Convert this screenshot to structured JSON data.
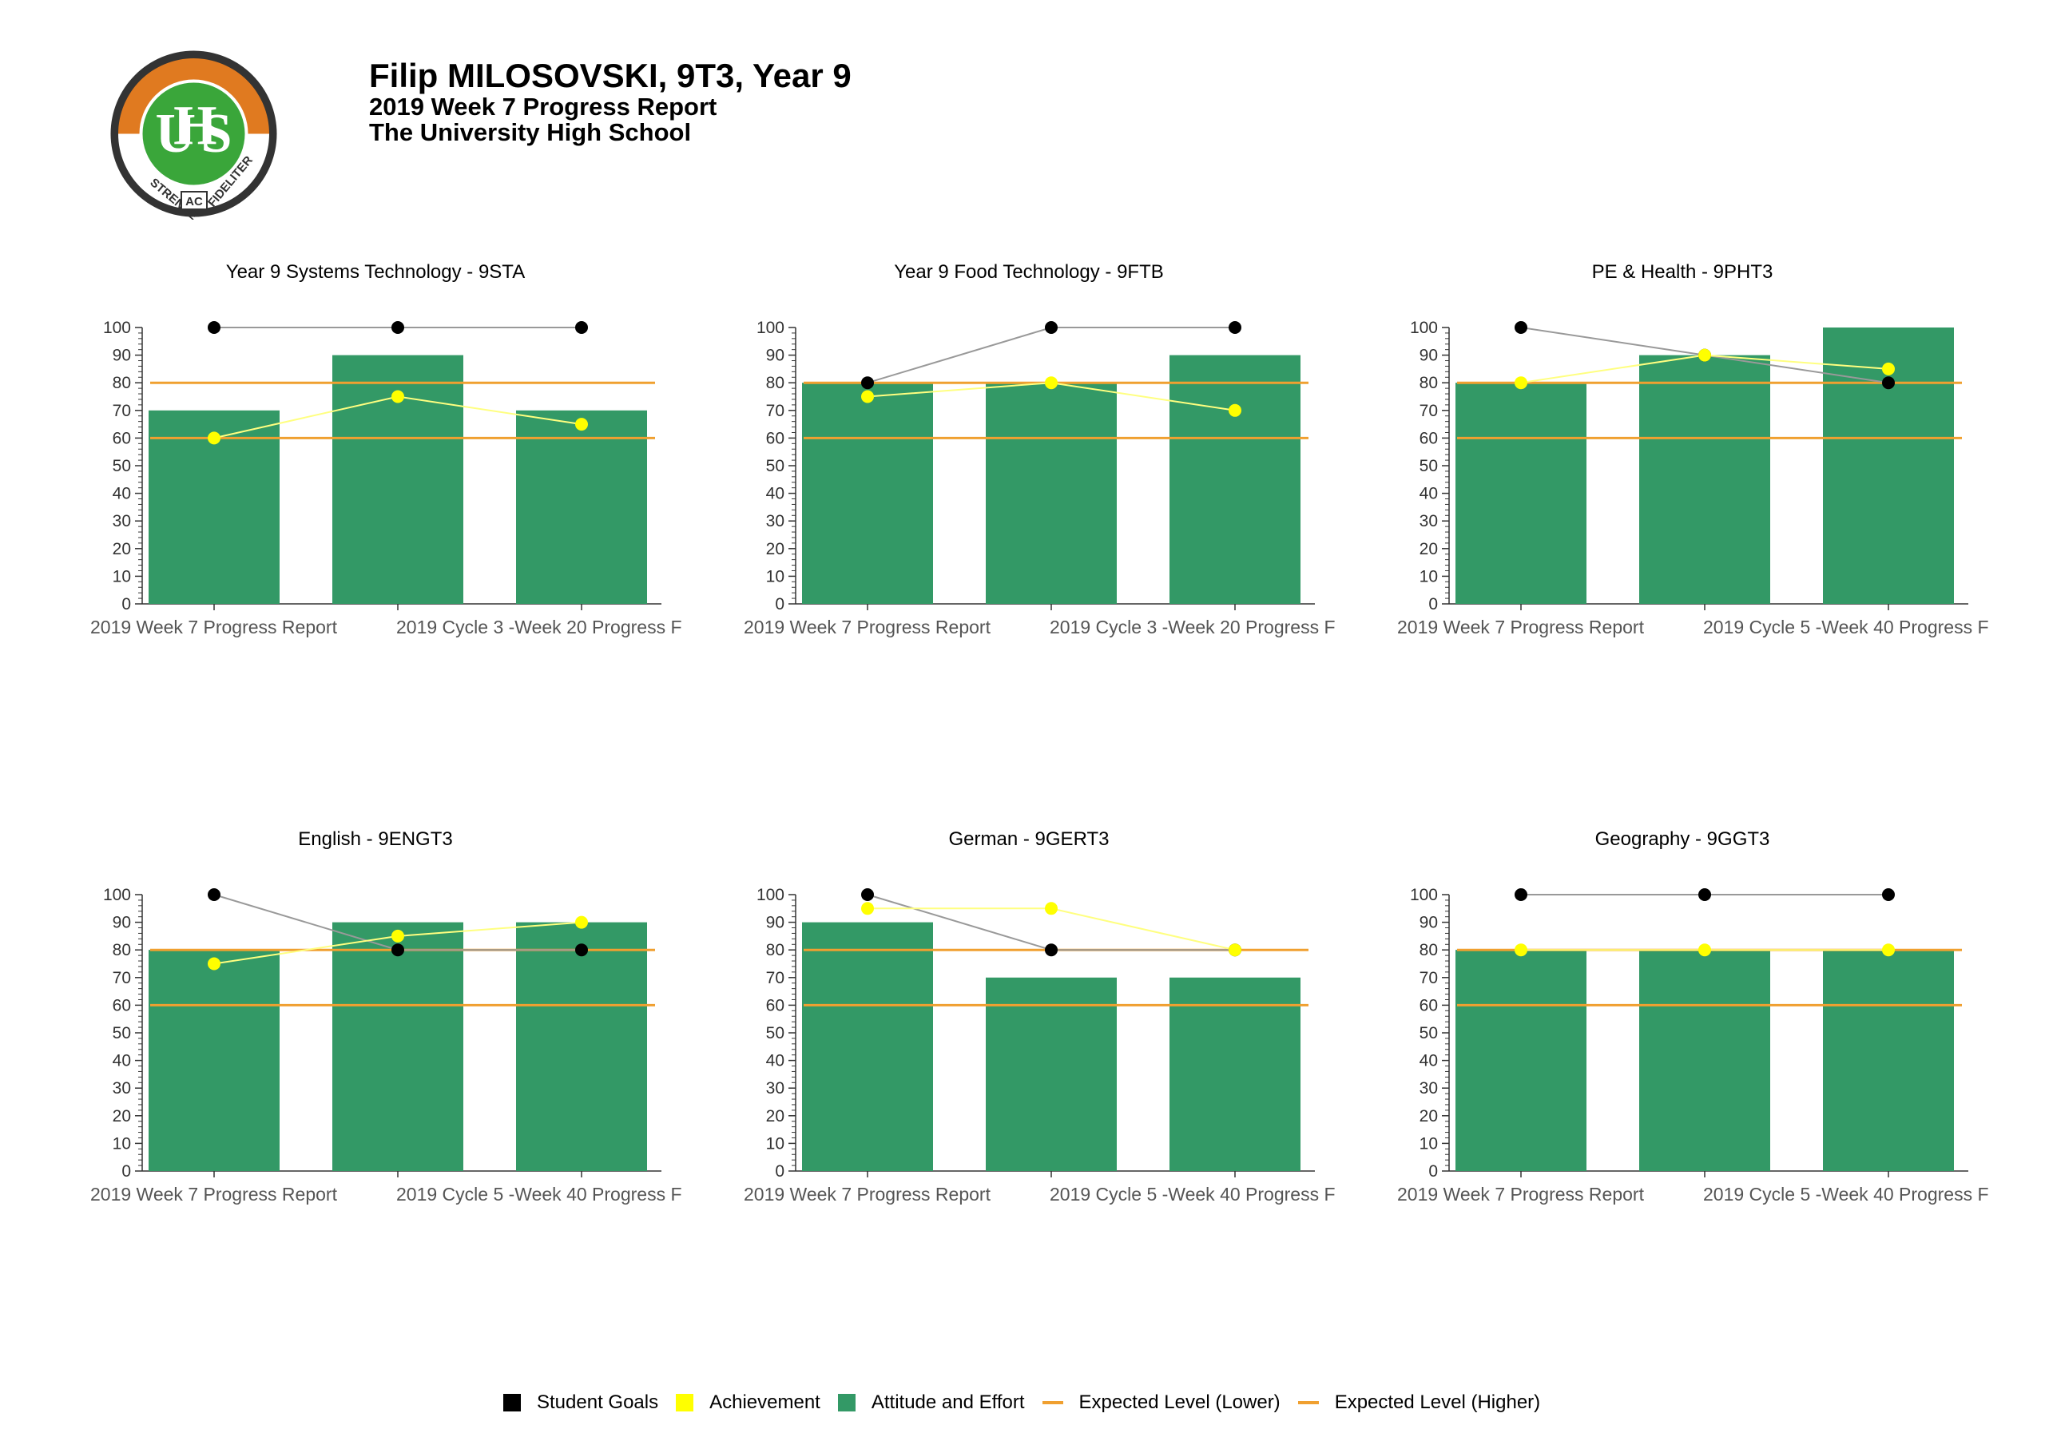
{
  "header": {
    "student": "Filip MILOSOVSKI, 9T3, Year 9",
    "report": "2019 Week 7 Progress Report",
    "school": "The University High School"
  },
  "logo": {
    "letters": "UHS",
    "motto_left": "STRENUE",
    "motto_mid": "AC",
    "motto_right": "FIDELITER"
  },
  "colors": {
    "bar": "#339966",
    "goal": "#000000",
    "achievement": "#ffff00",
    "expected_lower": "#f0a030",
    "expected_higher": "#f0a030"
  },
  "legend": [
    {
      "label": "Student Goals",
      "kind": "square",
      "color": "#000000"
    },
    {
      "label": "Achievement",
      "kind": "square",
      "color": "#ffff00"
    },
    {
      "label": "Attitude and Effort",
      "kind": "square",
      "color": "#339966"
    },
    {
      "label": "Expected Level (Lower)",
      "kind": "line",
      "color": "#f0a030"
    },
    {
      "label": "Expected Level (Higher)",
      "kind": "line",
      "color": "#f0a030"
    }
  ],
  "chart_data": [
    {
      "type": "bar",
      "title": "Year 9 Systems Technology - 9STA",
      "categories": [
        "2019 Week 7 Progress Report",
        "",
        "2019 Cycle 3 -Week 20 Progress F"
      ],
      "ylim": [
        0,
        100
      ],
      "yticks": [
        0,
        10,
        20,
        30,
        40,
        50,
        60,
        70,
        80,
        90,
        100
      ],
      "series": [
        {
          "name": "Attitude and Effort",
          "values": [
            70,
            90,
            70
          ]
        },
        {
          "name": "Student Goals",
          "values": [
            100,
            100,
            100
          ]
        },
        {
          "name": "Achievement",
          "values": [
            60,
            75,
            65
          ]
        }
      ],
      "expected_lower": 60,
      "expected_higher": 80
    },
    {
      "type": "bar",
      "title": "Year 9 Food Technology - 9FTB",
      "categories": [
        "2019 Week 7 Progress Report",
        "",
        "2019 Cycle 3 -Week 20 Progress F"
      ],
      "ylim": [
        0,
        100
      ],
      "yticks": [
        0,
        10,
        20,
        30,
        40,
        50,
        60,
        70,
        80,
        90,
        100
      ],
      "series": [
        {
          "name": "Attitude and Effort",
          "values": [
            80,
            80,
            90
          ]
        },
        {
          "name": "Student Goals",
          "values": [
            80,
            100,
            100
          ]
        },
        {
          "name": "Achievement",
          "values": [
            75,
            80,
            70
          ]
        }
      ],
      "expected_lower": 60,
      "expected_higher": 80
    },
    {
      "type": "bar",
      "title": "PE & Health - 9PHT3",
      "categories": [
        "2019 Week 7 Progress Report",
        "",
        "2019 Cycle 5 -Week 40 Progress F"
      ],
      "ylim": [
        0,
        100
      ],
      "yticks": [
        0,
        10,
        20,
        30,
        40,
        50,
        60,
        70,
        80,
        90,
        100
      ],
      "series": [
        {
          "name": "Attitude and Effort",
          "values": [
            80,
            90,
            100
          ]
        },
        {
          "name": "Student Goals",
          "values": [
            100,
            90,
            80
          ]
        },
        {
          "name": "Achievement",
          "values": [
            80,
            90,
            85
          ]
        }
      ],
      "expected_lower": 60,
      "expected_higher": 80
    },
    {
      "type": "bar",
      "title": "English - 9ENGT3",
      "categories": [
        "2019 Week 7 Progress Report",
        "",
        "2019 Cycle 5 -Week 40 Progress F"
      ],
      "ylim": [
        0,
        100
      ],
      "yticks": [
        0,
        10,
        20,
        30,
        40,
        50,
        60,
        70,
        80,
        90,
        100
      ],
      "series": [
        {
          "name": "Attitude and Effort",
          "values": [
            80,
            90,
            90
          ]
        },
        {
          "name": "Student Goals",
          "values": [
            100,
            80,
            80
          ]
        },
        {
          "name": "Achievement",
          "values": [
            75,
            85,
            90
          ]
        }
      ],
      "expected_lower": 60,
      "expected_higher": 80
    },
    {
      "type": "bar",
      "title": "German - 9GERT3",
      "categories": [
        "2019 Week 7 Progress Report",
        "",
        "2019 Cycle 5 -Week 40 Progress F"
      ],
      "ylim": [
        0,
        100
      ],
      "yticks": [
        0,
        10,
        20,
        30,
        40,
        50,
        60,
        70,
        80,
        90,
        100
      ],
      "series": [
        {
          "name": "Attitude and Effort",
          "values": [
            90,
            70,
            70
          ]
        },
        {
          "name": "Student Goals",
          "values": [
            100,
            80,
            80
          ]
        },
        {
          "name": "Achievement",
          "values": [
            95,
            95,
            80
          ]
        }
      ],
      "expected_lower": 60,
      "expected_higher": 80
    },
    {
      "type": "bar",
      "title": "Geography - 9GGT3",
      "categories": [
        "2019 Week 7 Progress Report",
        "",
        "2019 Cycle 5 -Week 40 Progress F"
      ],
      "ylim": [
        0,
        100
      ],
      "yticks": [
        0,
        10,
        20,
        30,
        40,
        50,
        60,
        70,
        80,
        90,
        100
      ],
      "series": [
        {
          "name": "Attitude and Effort",
          "values": [
            80,
            80,
            80
          ]
        },
        {
          "name": "Student Goals",
          "values": [
            100,
            100,
            100
          ]
        },
        {
          "name": "Achievement",
          "values": [
            80,
            80,
            80
          ]
        }
      ],
      "expected_lower": 60,
      "expected_higher": 80
    }
  ]
}
